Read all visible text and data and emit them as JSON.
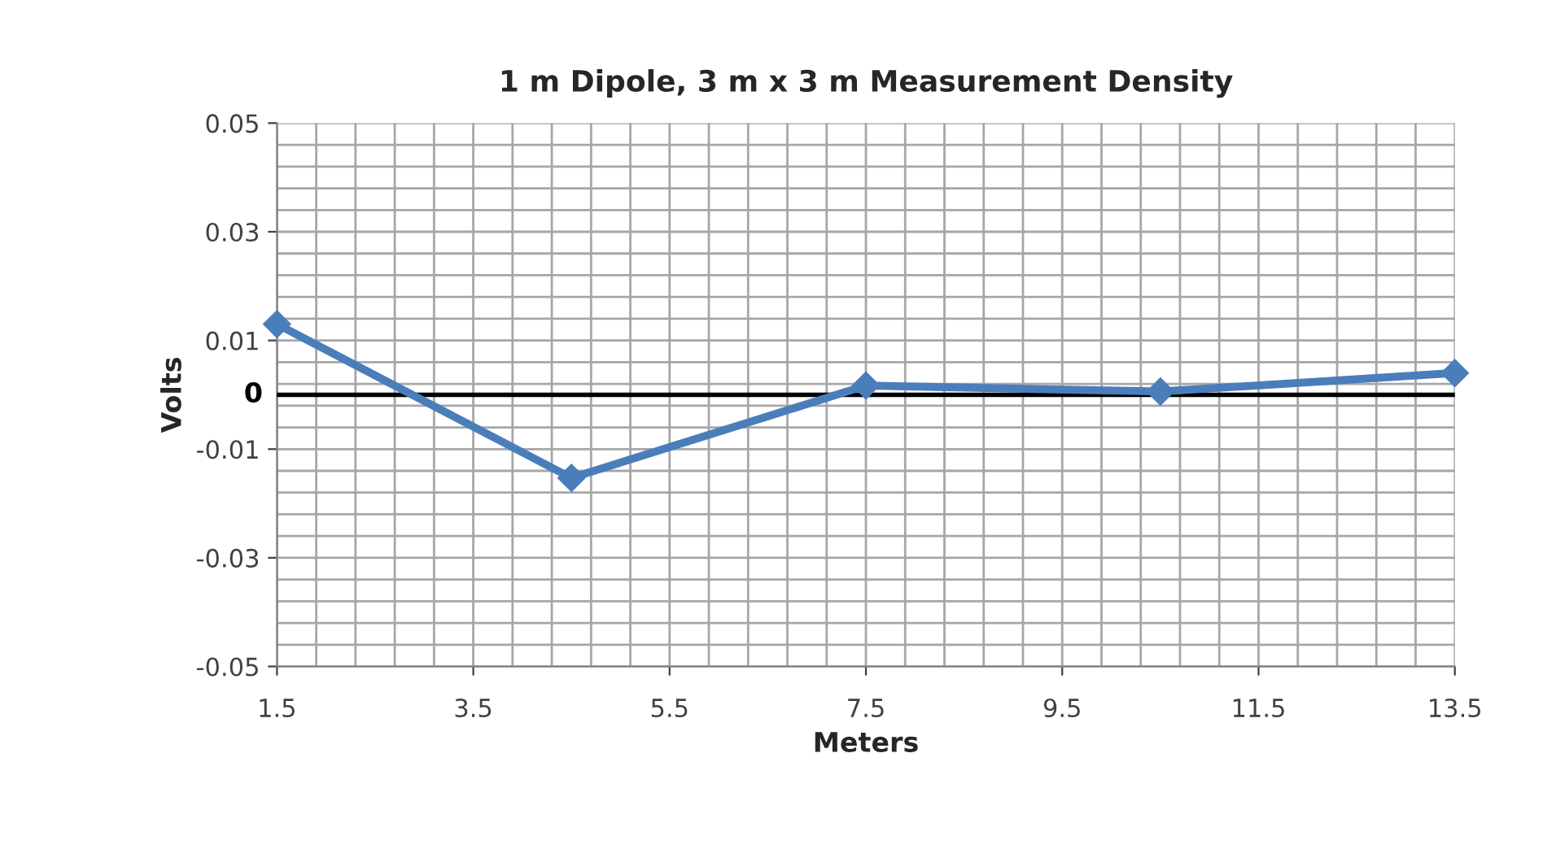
{
  "chart_data": {
    "type": "line",
    "title": "1 m Dipole, 3 m x 3 m Measurement Density",
    "xlabel": "Meters",
    "ylabel": "Volts",
    "x": [
      1.5,
      4.5,
      7.5,
      10.5,
      13.5
    ],
    "series": [
      {
        "color": "#4a7ebb",
        "values": [
          0.013,
          -0.0153,
          0.0017,
          0.0006,
          0.004
        ]
      }
    ],
    "xlim": [
      1.5,
      13.5
    ],
    "xticks": [
      {
        "value": 1.5,
        "label": "1.5"
      },
      {
        "value": 3.5,
        "label": "3.5"
      },
      {
        "value": 5.5,
        "label": "5.5"
      },
      {
        "value": 7.5,
        "label": "7.5"
      },
      {
        "value": 9.5,
        "label": "9.5"
      },
      {
        "value": 11.5,
        "label": "11.5"
      },
      {
        "value": 13.5,
        "label": "13.5"
      }
    ],
    "ylim": [
      -0.05,
      0.05
    ],
    "yticks": [
      -0.05,
      -0.03,
      -0.01,
      0.01,
      0.03,
      0.05
    ],
    "ref_lines": [
      {
        "axis": "y",
        "value": 0,
        "label": "0",
        "color": "#000000"
      }
    ],
    "grid": true,
    "marker": "diamond",
    "line_style": "solid"
  }
}
